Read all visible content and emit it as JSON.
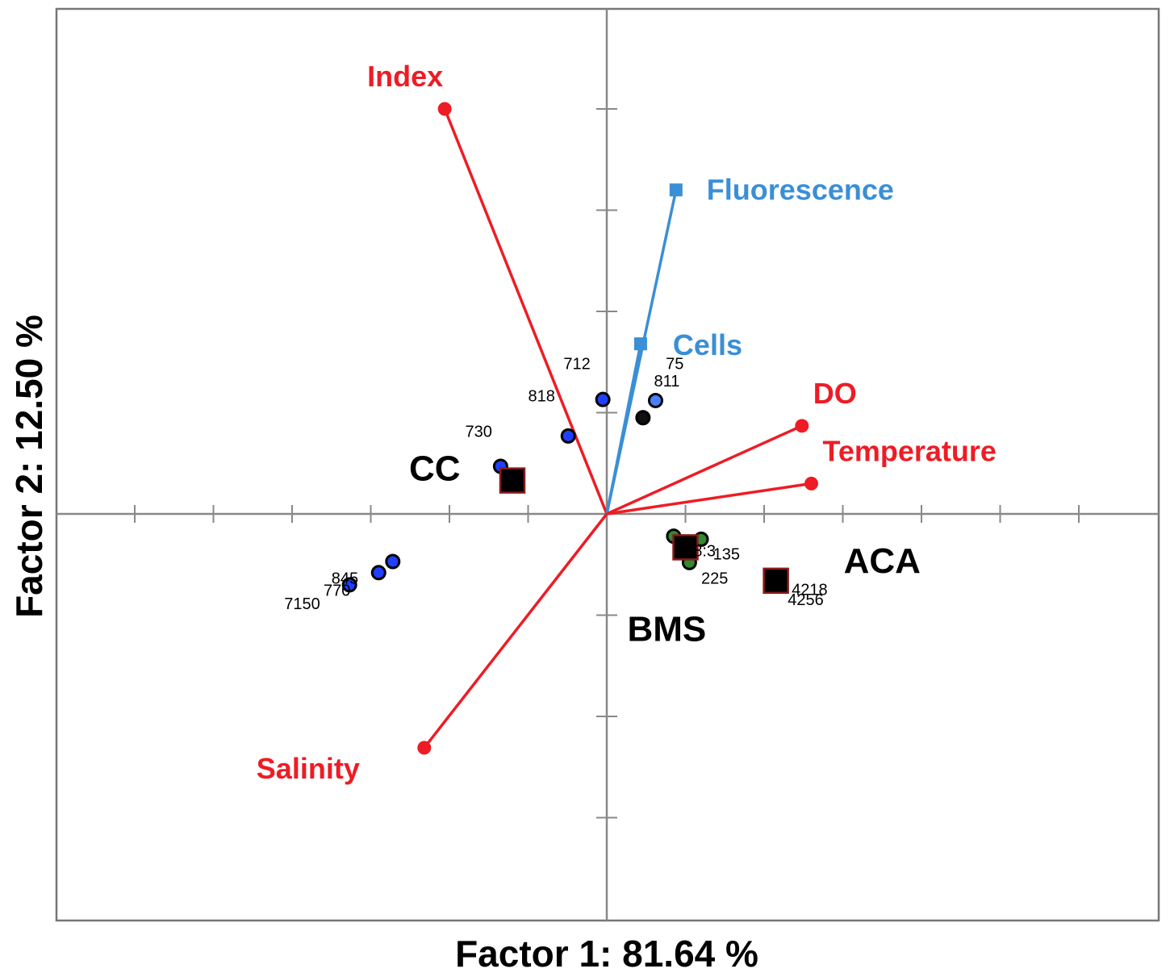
{
  "chart_data": {
    "type": "scatter",
    "subtype": "pca-biplot",
    "title": "",
    "xlabel": "Factor 1: 81.64 %",
    "ylabel": "Factor 2: 12.50 %",
    "xlim": [
      -7,
      7
    ],
    "ylim": [
      -4,
      5
    ],
    "grid": false,
    "legend": "none",
    "x_ticks_every": 1,
    "y_ticks_every": 1,
    "variables": [
      {
        "name": "Index",
        "x": -2.06,
        "y": 4.0,
        "color": "#ee1c25",
        "marker": "circle"
      },
      {
        "name": "Fluorescence",
        "x": 0.88,
        "y": 3.2,
        "color": "#3a8fd6",
        "marker": "square"
      },
      {
        "name": "Cells",
        "x": 0.43,
        "y": 1.68,
        "color": "#3a8fd6",
        "marker": "square"
      },
      {
        "name": "DO",
        "x": 2.48,
        "y": 0.87,
        "color": "#ee1c25",
        "marker": "circle"
      },
      {
        "name": "Temperature",
        "x": 2.6,
        "y": 0.3,
        "color": "#ee1c25",
        "marker": "circle"
      },
      {
        "name": "Salinity",
        "x": -2.32,
        "y": -2.31,
        "color": "#ee1c25",
        "marker": "circle"
      }
    ],
    "groups": [
      {
        "name": "CC",
        "x": -1.2,
        "y": 0.33
      },
      {
        "name": "BMS",
        "x": 1.0,
        "y": -0.33
      },
      {
        "name": "ACA",
        "x": 2.15,
        "y": -0.66
      }
    ],
    "observations": [
      {
        "label": "712",
        "x": -0.05,
        "y": 1.13,
        "color": "#2040ff"
      },
      {
        "label": "75",
        "x": 0.46,
        "y": 0.95,
        "color": "#101010"
      },
      {
        "label": "811",
        "x": 0.62,
        "y": 1.12,
        "color": "#4a80ff"
      },
      {
        "label": "818",
        "x": -0.49,
        "y": 0.77,
        "color": "#2040ff"
      },
      {
        "label": "730",
        "x": -1.35,
        "y": 0.47,
        "color": "#2040ff"
      },
      {
        "label": "845",
        "x": -2.72,
        "y": -0.47,
        "color": "#2040ff"
      },
      {
        "label": "770",
        "x": -2.9,
        "y": -0.58,
        "color": "#2040ff"
      },
      {
        "label": "7150",
        "x": -3.27,
        "y": -0.7,
        "color": "#2040ff"
      },
      {
        "label": "",
        "x": 0.85,
        "y": -0.22,
        "color": "#2e8b2e"
      },
      {
        "label": "",
        "x": 1.2,
        "y": -0.25,
        "color": "#2e8b2e"
      },
      {
        "label": "",
        "x": 0.95,
        "y": -0.35,
        "color": "#2e8b2e"
      },
      {
        "label": "",
        "x": 1.05,
        "y": -0.48,
        "color": "#2e8b2e"
      }
    ],
    "observation_text_labels": [
      {
        "text": "712",
        "x": -0.55,
        "y": 1.43
      },
      {
        "text": "75",
        "x": 0.75,
        "y": 1.43
      },
      {
        "text": "811",
        "x": 0.6,
        "y": 1.26
      },
      {
        "text": "818",
        "x": -1.0,
        "y": 1.11
      },
      {
        "text": "730",
        "x": -1.8,
        "y": 0.76
      },
      {
        "text": "8:3",
        "x": 1.1,
        "y": -0.42
      },
      {
        "text": "135",
        "x": 1.35,
        "y": -0.45
      },
      {
        "text": "225",
        "x": 1.2,
        "y": -0.69
      },
      {
        "text": "4218",
        "x": 2.35,
        "y": -0.8
      },
      {
        "text": "4256",
        "x": 2.3,
        "y": -0.9
      },
      {
        "text": "845",
        "x": -3.5,
        "y": -0.69
      },
      {
        "text": "770",
        "x": -3.6,
        "y": -0.81
      },
      {
        "text": "7150",
        "x": -4.1,
        "y": -0.94
      }
    ]
  }
}
